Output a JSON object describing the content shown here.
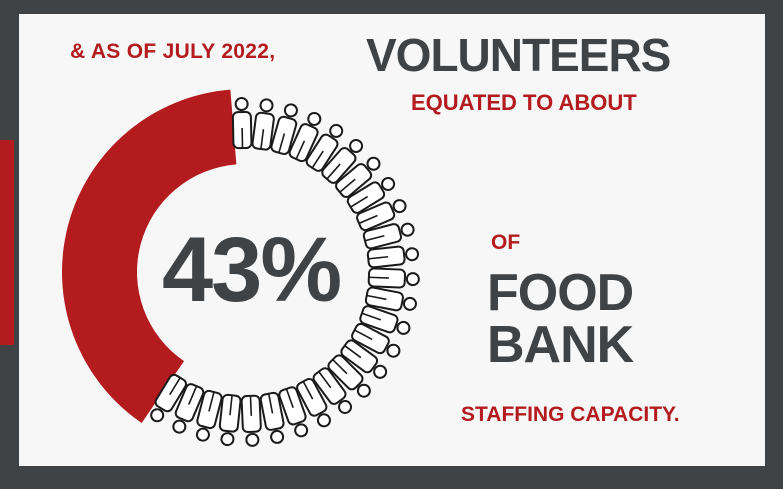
{
  "infographic": {
    "intro": "& AS OF JULY 2022,",
    "headline": "VOLUNTEERS",
    "subhead": "EQUATED TO ABOUT",
    "stat": "43%",
    "of": "OF",
    "org_line1": "FOOD",
    "org_line2": "BANK",
    "closing": "STAFFING CAPACITY."
  },
  "colors": {
    "accent": "#b31b1e",
    "dark": "#3f4345",
    "background": "#f7f7f7"
  },
  "progress_fraction": 0.43,
  "icons": [
    "person-icon"
  ]
}
